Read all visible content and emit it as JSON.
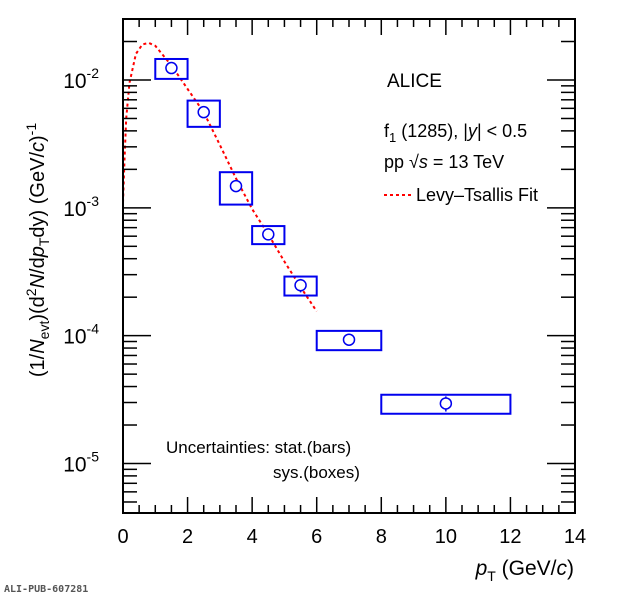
{
  "chart_data": {
    "type": "scatter",
    "title": "",
    "xlabel": {
      "main": "p",
      "sub": "T",
      "rest": " (GeV/",
      "italic": "c",
      "close": ")"
    },
    "ylabel": {
      "p1": "(1/",
      "n": "N",
      "nsub": "evt",
      "p2": ")(d",
      "sup2": "2",
      "n2": "N",
      "p3": "/d",
      "p": "p",
      "psub": "T",
      "p4": "dy) (GeV/",
      "c": "c",
      "p5": ")",
      "supm1": "-1"
    },
    "xlim": [
      0,
      14
    ],
    "ylim": [
      4.1e-06,
      0.03
    ],
    "log_y": true,
    "grid": false,
    "x_ticks": [
      "0",
      "2",
      "4",
      "6",
      "8",
      "10",
      "12",
      "14"
    ],
    "y_ticks": [
      {
        "base": "10",
        "exp": "-2",
        "value": 0.01
      },
      {
        "base": "10",
        "exp": "-3",
        "value": 0.001
      },
      {
        "base": "10",
        "exp": "-4",
        "value": 0.0001
      },
      {
        "base": "10",
        "exp": "-5",
        "value": 1e-05
      }
    ],
    "data": {
      "color": "#0000ee",
      "points": [
        {
          "x": 1.5,
          "xlow": 1,
          "xhigh": 2,
          "y": 0.0124,
          "stat": 0.0007,
          "sys": 0.0022
        },
        {
          "x": 2.5,
          "xlow": 2,
          "xhigh": 3,
          "y": 0.0056,
          "stat": 0.0002,
          "sys": 0.0013
        },
        {
          "x": 3.5,
          "xlow": 3,
          "xhigh": 4,
          "y": 0.00148,
          "stat": 0.0001,
          "sys": 0.00042
        },
        {
          "x": 4.5,
          "xlow": 4,
          "xhigh": 5,
          "y": 0.00062,
          "stat": 3e-05,
          "sys": 0.0001
        },
        {
          "x": 5.5,
          "xlow": 5,
          "xhigh": 6,
          "y": 0.000248,
          "stat": 3e-05,
          "sys": 4.2e-05
        },
        {
          "x": 7,
          "xlow": 6,
          "xhigh": 8,
          "y": 9.3e-05,
          "stat": 8e-06,
          "sys": 1.6e-05
        },
        {
          "x": 10,
          "xlow": 8,
          "xhigh": 12,
          "y": 2.95e-05,
          "stat": 4e-06,
          "sys": 5e-06
        }
      ]
    },
    "fit": {
      "name": "Levy–Tsallis Fit",
      "color": "#ff0000",
      "points": [
        [
          0.0,
          0.0011
        ],
        [
          0.05,
          0.0025
        ],
        [
          0.1,
          0.005
        ],
        [
          0.2,
          0.0095
        ],
        [
          0.4,
          0.016
        ],
        [
          0.6,
          0.019
        ],
        [
          0.8,
          0.0195
        ],
        [
          1.0,
          0.0185
        ],
        [
          1.5,
          0.013
        ],
        [
          2.0,
          0.0085
        ],
        [
          2.5,
          0.0056
        ],
        [
          3.0,
          0.0031
        ],
        [
          3.5,
          0.0017
        ],
        [
          4.0,
          0.00098
        ],
        [
          4.5,
          0.00062
        ],
        [
          5.0,
          0.00038
        ],
        [
          5.5,
          0.00024
        ],
        [
          6.0,
          0.000155
        ]
      ]
    },
    "annotations": {
      "experiment": "ALICE",
      "particle": {
        "f": "f",
        "fsub": "1",
        "rest": " (1285), |",
        "y": "y",
        "rest2": "| < 0.5"
      },
      "energy": {
        "pp": "pp ",
        "sqrt": "√",
        "s": "s",
        "rest": " = 13 TeV"
      },
      "unc1": "Uncertainties: stat.(bars)",
      "unc2": "sys.(boxes)"
    },
    "legend_placement": "top-right"
  },
  "watermark": "ALI-PUB-607281"
}
